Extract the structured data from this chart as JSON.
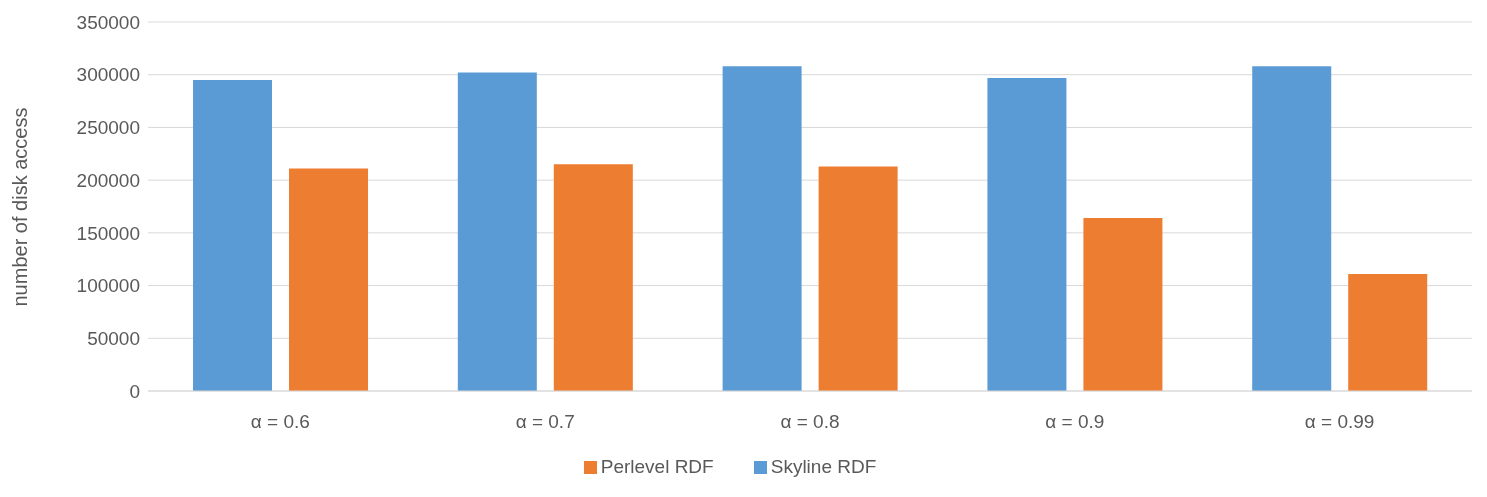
{
  "chart_data": {
    "type": "bar",
    "ylabel": "number of disk access",
    "categories": [
      "α = 0.6",
      "α = 0.7",
      "α = 0.8",
      "α = 0.9",
      "α = 0.99"
    ],
    "series": [
      {
        "name": "Skyline RDF",
        "color": "#5b9bd5",
        "values": [
          295000,
          302000,
          308000,
          297000,
          308000
        ]
      },
      {
        "name": "Perlevel RDF",
        "color": "#ed7d31",
        "values": [
          211000,
          215000,
          213000,
          164000,
          111000
        ]
      }
    ],
    "ylim": [
      0,
      350000
    ],
    "yticks": [
      0,
      50000,
      100000,
      150000,
      200000,
      250000,
      300000,
      350000
    ],
    "grid": "y",
    "legend": "bottom"
  }
}
